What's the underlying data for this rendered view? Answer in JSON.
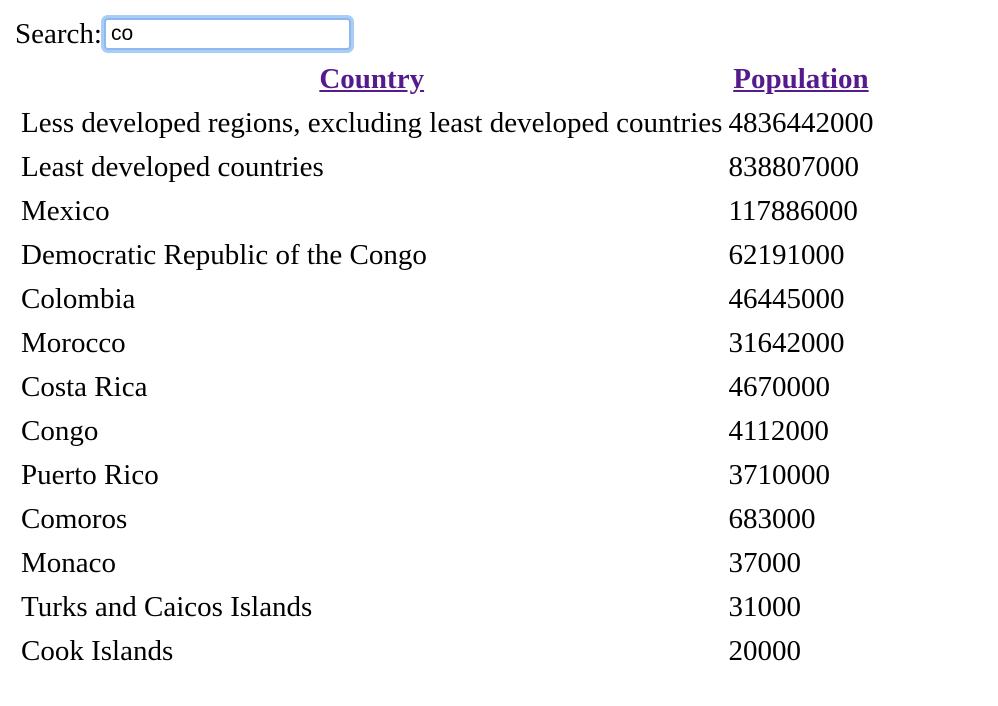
{
  "search": {
    "label": "Search:",
    "value": "co"
  },
  "table": {
    "columns": [
      "Country",
      "Population"
    ],
    "link_color": "#551a8b",
    "rows": [
      {
        "country": "Less developed regions, excluding least developed countries",
        "population": "4836442000"
      },
      {
        "country": "Least developed countries",
        "population": "838807000"
      },
      {
        "country": "Mexico",
        "population": "117886000"
      },
      {
        "country": "Democratic Republic of the Congo",
        "population": "62191000"
      },
      {
        "country": "Colombia",
        "population": "46445000"
      },
      {
        "country": "Morocco",
        "population": "31642000"
      },
      {
        "country": "Costa Rica",
        "population": "4670000"
      },
      {
        "country": "Congo",
        "population": "4112000"
      },
      {
        "country": "Puerto Rico",
        "population": "3710000"
      },
      {
        "country": "Comoros",
        "population": "683000"
      },
      {
        "country": "Monaco",
        "population": "37000"
      },
      {
        "country": "Turks and Caicos Islands",
        "population": "31000"
      },
      {
        "country": "Cook Islands",
        "population": "20000"
      }
    ]
  }
}
